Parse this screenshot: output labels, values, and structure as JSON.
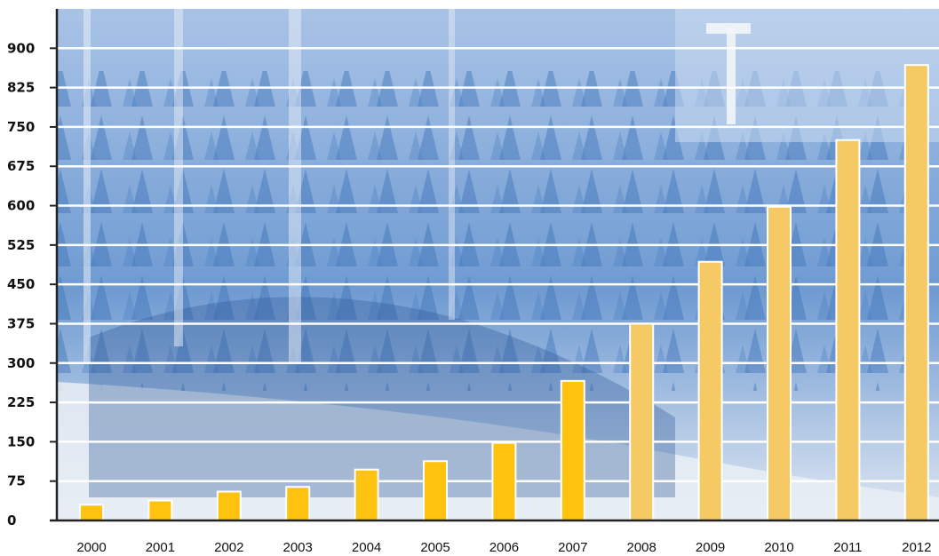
{
  "chart_data": {
    "type": "bar",
    "title": "",
    "xlabel": "",
    "ylabel": "",
    "categories": [
      "2000",
      "2001",
      "2002",
      "2003",
      "2004",
      "2005",
      "2006",
      "2007",
      "2008",
      "2009",
      "2010",
      "2011",
      "2012"
    ],
    "values": [
      30,
      38,
      55,
      64,
      97,
      113,
      148,
      266,
      375,
      493,
      598,
      725,
      868
    ],
    "ylim": [
      0,
      975
    ],
    "yticks": [
      0,
      75,
      150,
      225,
      300,
      375,
      450,
      525,
      600,
      675,
      750,
      825,
      900
    ],
    "grid": true,
    "legend": "none",
    "colors": {
      "bar_solid": "#ffc20e",
      "bar_faded": "#f5c963",
      "bar_stroke": "#ffffff",
      "gridline": "#ffffff",
      "axis": "#222222",
      "background_photo_tint": "#5d8ec8"
    },
    "faded_from_index": 8
  }
}
